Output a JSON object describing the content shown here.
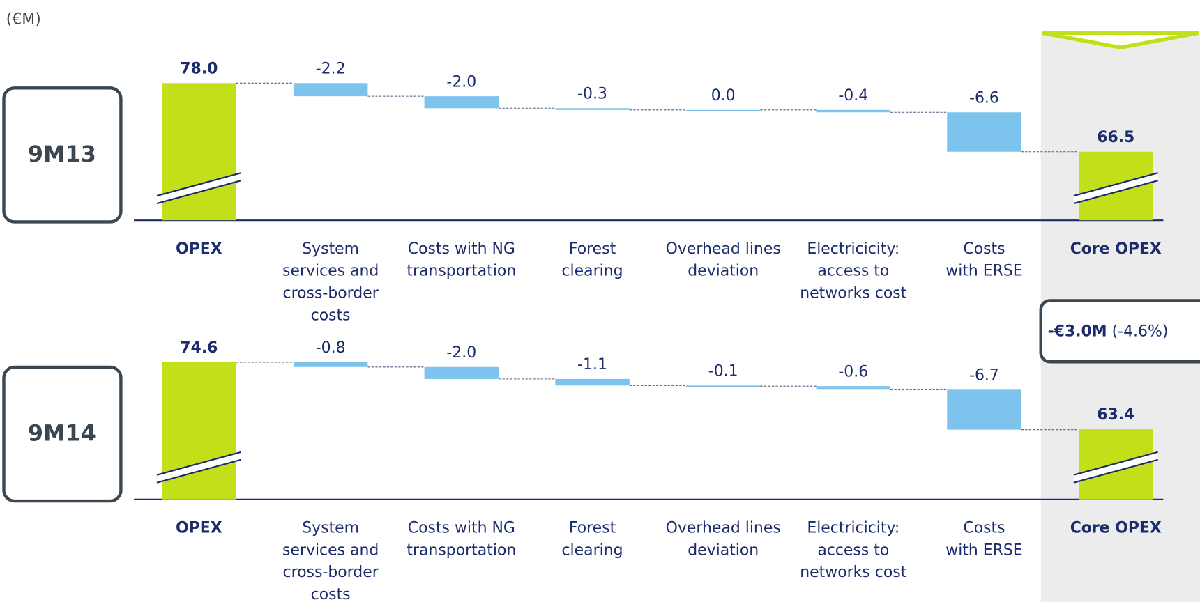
{
  "unit": "(€M)",
  "annotation": {
    "change": "-€3.0M",
    "percent": "(-4.6%)"
  },
  "chart_data": [
    {
      "type": "waterfall",
      "label": "9M13",
      "categories": [
        "OPEX",
        "System\nservices and\ncross-border\ncosts",
        "Costs with NG\ntransportation",
        "Forest\nclearing",
        "Overhead lines\ndeviation",
        "Electricicity:\naccess to\nnetworks cost",
        "Costs\nwith ERSE",
        "Core OPEX"
      ],
      "values": [
        78.0,
        -2.2,
        -2.0,
        -0.3,
        0.0,
        -0.4,
        -6.6,
        66.5
      ],
      "value_labels": [
        "78.0",
        "-2.2",
        "-2.0",
        "-0.3",
        "0.0",
        "-0.4",
        "-6.6",
        "66.5"
      ],
      "ylim": [
        55,
        80
      ],
      "total_color": "#c3df1a",
      "step_color": "#7cc4ee"
    },
    {
      "type": "waterfall",
      "label": "9M14",
      "categories": [
        "OPEX",
        "System\nservices and\ncross-border\ncosts",
        "Costs with NG\ntransportation",
        "Forest\nclearing",
        "Overhead lines\ndeviation",
        "Electricicity:\naccess to\nnetworks cost",
        "Costs\nwith ERSE",
        "Core OPEX"
      ],
      "values": [
        74.6,
        -0.8,
        -2.0,
        -1.1,
        -0.1,
        -0.6,
        -6.7,
        63.4
      ],
      "value_labels": [
        "74.6",
        "-0.8",
        "-2.0",
        "-1.1",
        "-0.1",
        "-0.6",
        "-6.7",
        "63.4"
      ],
      "ylim": [
        51.6,
        76.6
      ],
      "total_color": "#c3df1a",
      "step_color": "#7cc4ee"
    }
  ]
}
